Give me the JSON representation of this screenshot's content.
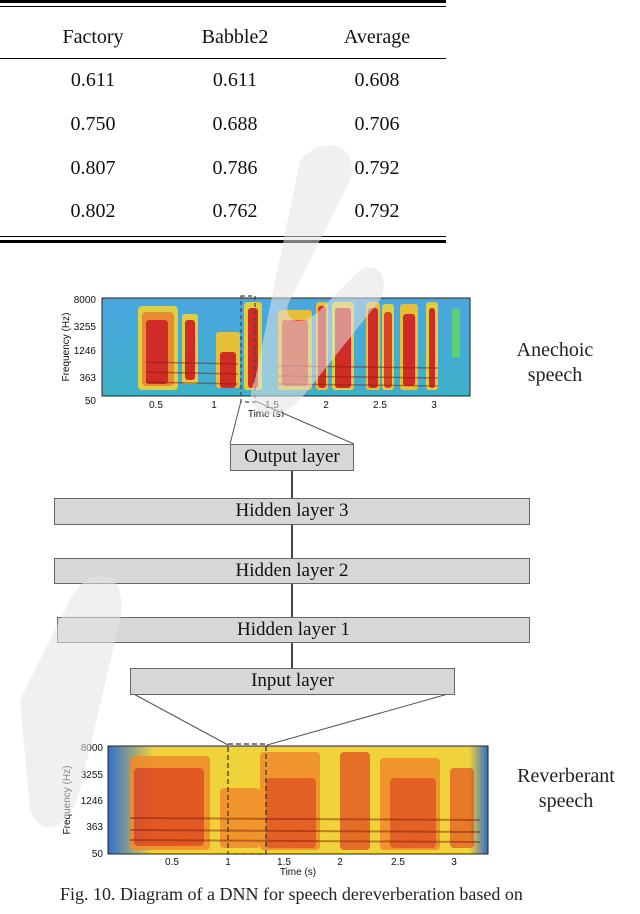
{
  "table": {
    "headers": [
      "Factory",
      "Babble2",
      "Average"
    ],
    "rows": [
      [
        "0.611",
        "0.611",
        "0.608"
      ],
      [
        "0.750",
        "0.688",
        "0.706"
      ],
      [
        "0.807",
        "0.786",
        "0.792"
      ],
      [
        "0.802",
        "0.762",
        "0.792"
      ]
    ]
  },
  "figure": {
    "top_spectrogram": {
      "label_line1": "Anechoic",
      "label_line2": "speech",
      "y_axis_label": "Frequency (Hz)",
      "y_ticks": [
        "8000",
        "3255",
        "1246",
        "363",
        "50"
      ],
      "x_ticks": [
        "0.5",
        "1",
        "1.5",
        "2",
        "2.5",
        "3"
      ],
      "x_axis_label": "Time (s)"
    },
    "layers": {
      "output": "Output layer",
      "hidden3": "Hidden layer 3",
      "hidden2": "Hidden layer 2",
      "hidden1": "Hidden layer 1",
      "input": "Input layer"
    },
    "bottom_spectrogram": {
      "label_line1": "Reverberant",
      "label_line2": "speech",
      "y_axis_label": "Frequency (Hz)",
      "y_ticks": [
        "8000",
        "3255",
        "1246",
        "363",
        "50"
      ],
      "x_ticks": [
        "0.5",
        "1",
        "1.5",
        "2",
        "2.5",
        "3"
      ],
      "x_axis_label": "Time (s)"
    }
  },
  "caption": "Fig. 10.    Diagram of a DNN for speech dereverberation based on"
}
